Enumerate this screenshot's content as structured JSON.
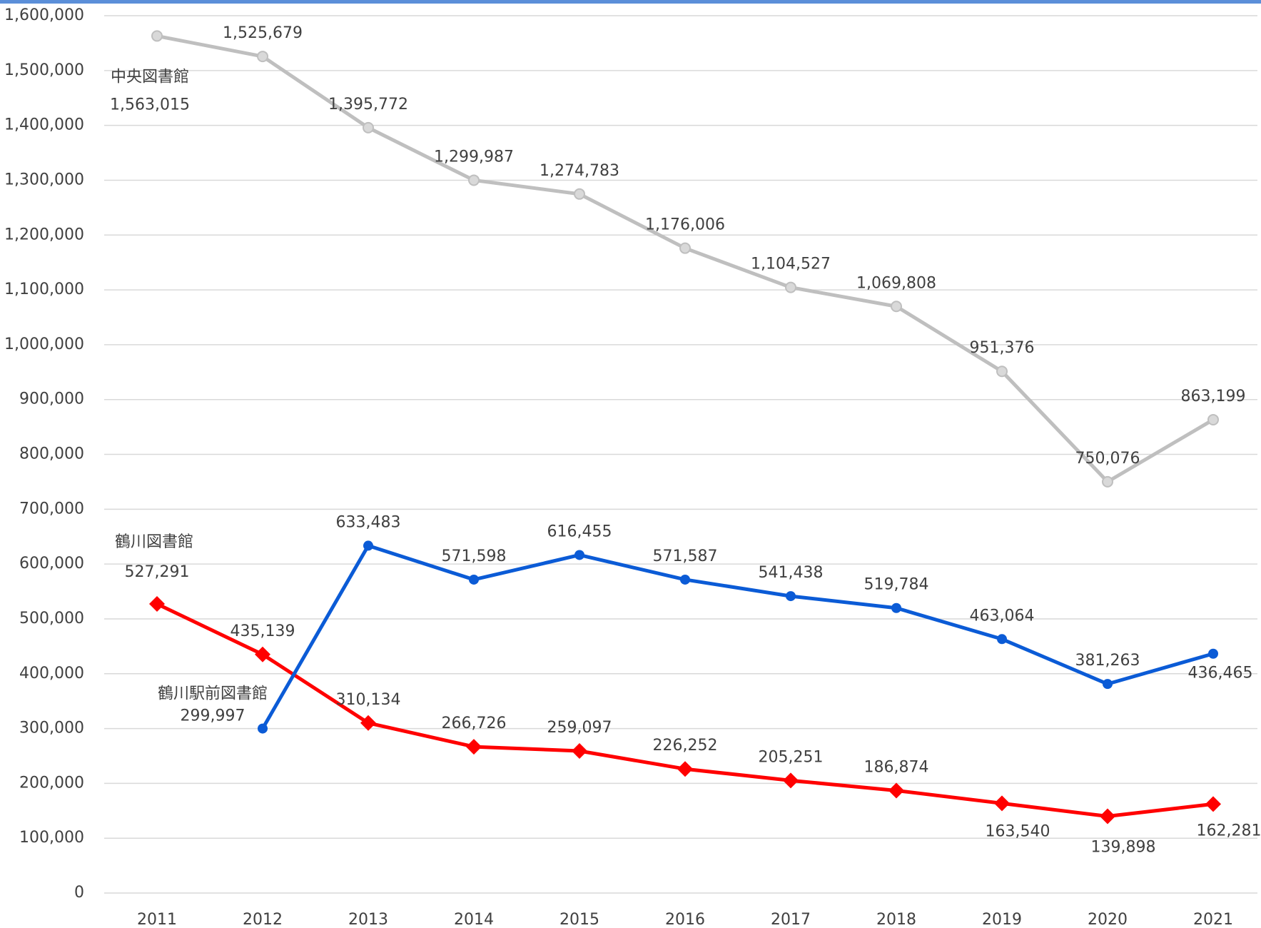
{
  "chart_data": {
    "type": "line",
    "categories": [
      "2011",
      "2012",
      "2013",
      "2014",
      "2015",
      "2016",
      "2017",
      "2018",
      "2019",
      "2020",
      "2021"
    ],
    "series": [
      {
        "name": "中央図書館",
        "color": "#bfbfbf",
        "marker": "circle",
        "values": [
          1563015,
          1525679,
          1395772,
          1299987,
          1274783,
          1176006,
          1104527,
          1069808,
          951376,
          750076,
          863199
        ],
        "value_labels": [
          "1,563,015",
          "1,525,679",
          "1,395,772",
          "1,299,987",
          "1,274,783",
          "1,176,006",
          "1,104,527",
          "1,069,808",
          "951,376",
          "750,076",
          "863,199"
        ]
      },
      {
        "name": "鶴川図書館",
        "color": "#ff0000",
        "marker": "diamond",
        "values": [
          527291,
          435139,
          310134,
          266726,
          259097,
          226252,
          205251,
          186874,
          163540,
          139898,
          162281
        ],
        "value_labels": [
          "527,291",
          "435,139",
          "310,134",
          "266,726",
          "259,097",
          "226,252",
          "205,251",
          "186,874",
          "163,540",
          "139,898",
          "162,281"
        ]
      },
      {
        "name": "鶴川駅前図書館",
        "color": "#0b5bd6",
        "marker": "circle",
        "values": [
          null,
          299997,
          633483,
          571598,
          616455,
          571587,
          541438,
          519784,
          463064,
          381263,
          436465
        ],
        "value_labels": [
          null,
          "299,997",
          "633,483",
          "571,598",
          "616,455",
          "571,587",
          "541,438",
          "519,784",
          "463,064",
          "381,263",
          "436,465"
        ]
      }
    ],
    "ylim": [
      0,
      1600000
    ],
    "yticks": [
      0,
      {
        "value": 100000,
        "label": "100,000"
      },
      {
        "value": 200000,
        "label": "200,000"
      },
      {
        "value": 300000,
        "label": "300,000"
      },
      {
        "value": 400000,
        "label": "400,000"
      },
      {
        "value": 500000,
        "label": "500,000"
      },
      {
        "value": 600000,
        "label": "600,000"
      },
      {
        "value": 700000,
        "label": "700,000"
      },
      {
        "value": 800000,
        "label": "800,000"
      },
      {
        "value": 900000,
        "label": "900,000"
      },
      {
        "value": 1000000,
        "label": "1,000,000"
      },
      {
        "value": 1100000,
        "label": "1,100,000"
      },
      {
        "value": 1200000,
        "label": "1,200,000"
      },
      {
        "value": 1300000,
        "label": "1,300,000"
      },
      {
        "value": 1400000,
        "label": "1,400,000"
      },
      {
        "value": 1500000,
        "label": "1,500,000"
      },
      {
        "value": 1600000,
        "label": "1,600,000"
      }
    ],
    "grid": true
  }
}
